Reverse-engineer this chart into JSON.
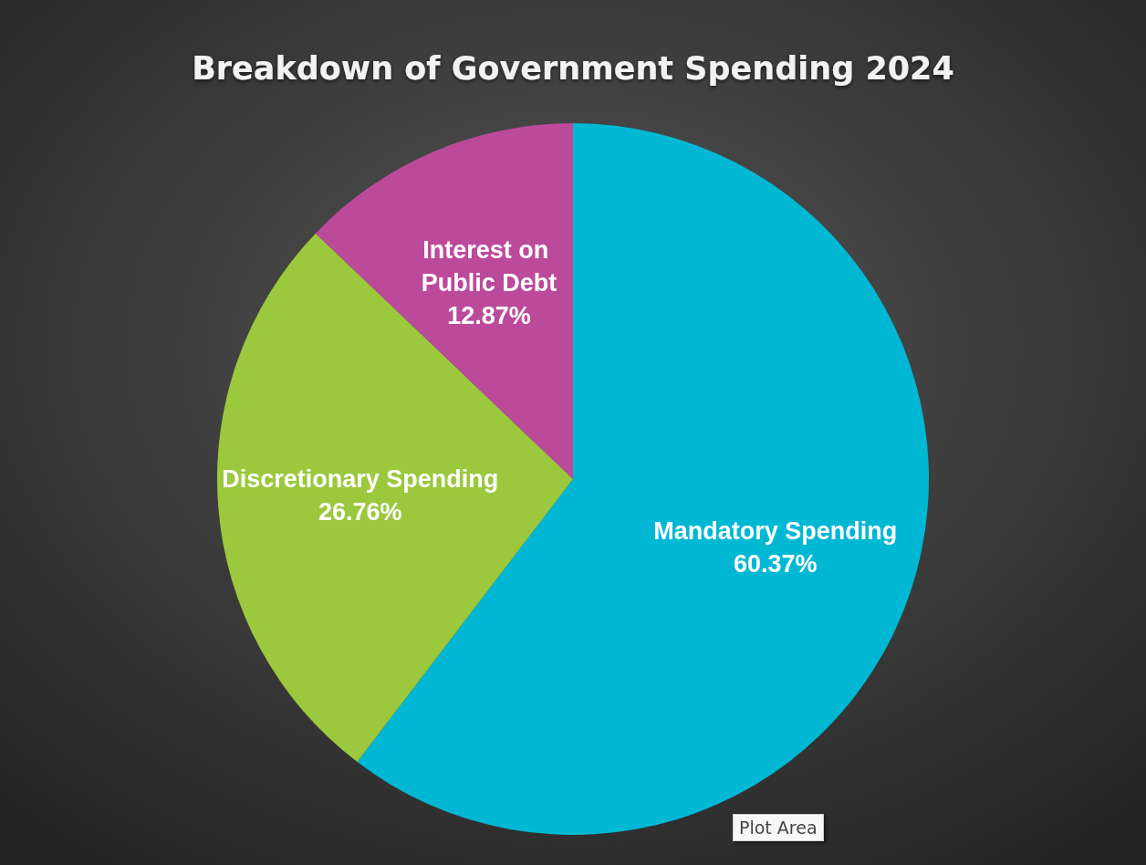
{
  "chart_data": {
    "type": "pie",
    "title": "Breakdown of Government Spending 2024",
    "categories": [
      "Mandatory Spending",
      "Discretionary Spending",
      "Interest on Public Debt"
    ],
    "values": [
      60.37,
      26.76,
      12.87
    ],
    "colors": [
      "#00b8d4",
      "#9bc83c",
      "#bc4a9b"
    ],
    "value_labels": [
      "60.37%",
      "26.76%",
      "12.87%"
    ],
    "annotations": [
      "Plot Area"
    ]
  }
}
